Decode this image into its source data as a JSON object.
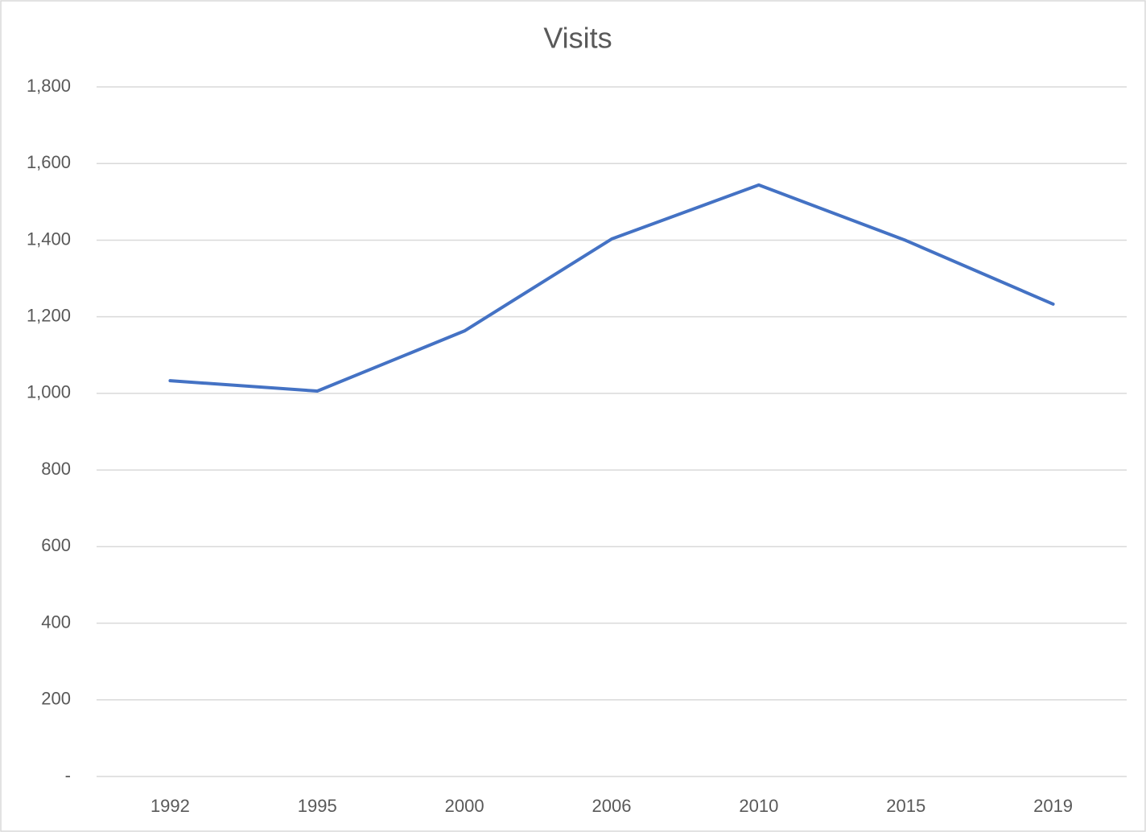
{
  "chart_data": {
    "type": "line",
    "title": "Visits",
    "categories": [
      "1992",
      "1995",
      "2000",
      "2006",
      "2010",
      "2015",
      "2019"
    ],
    "values": [
      1033,
      1006,
      1163,
      1403,
      1544,
      1399,
      1233
    ],
    "color": "#4472c4",
    "ylim": [
      0,
      1800
    ],
    "yticks": [
      {
        "value": 0,
        "label": "-"
      },
      200,
      400,
      600,
      800,
      {
        "value": 1000,
        "label": "1,000"
      },
      {
        "value": 1200,
        "label": "1,200"
      },
      {
        "value": 1400,
        "label": "1,400"
      },
      {
        "value": 1600,
        "label": "1,600"
      },
      {
        "value": 1800,
        "label": "1,800"
      }
    ],
    "grid": true
  }
}
